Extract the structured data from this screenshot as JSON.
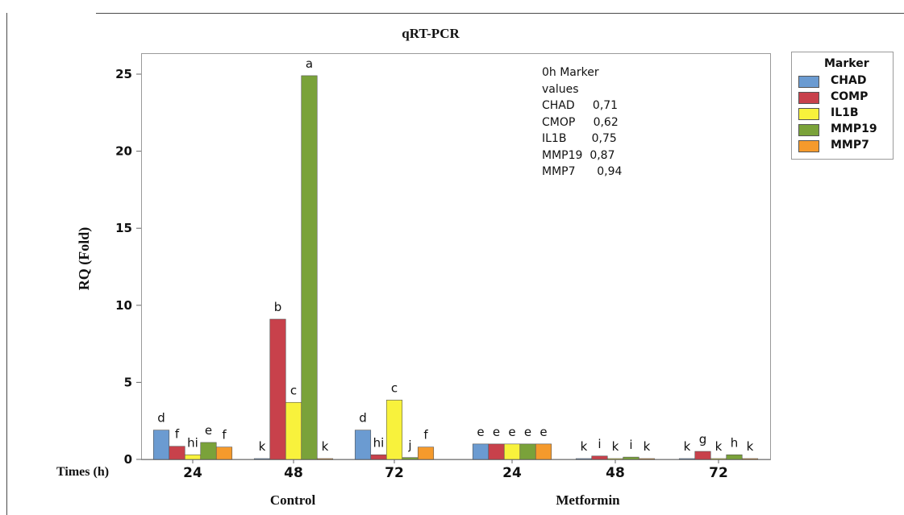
{
  "chart_data": {
    "type": "bar",
    "title": "qRT-PCR",
    "ylabel": "RQ (Fold)",
    "xlabel": "Times (h)",
    "ylim": [
      0,
      26
    ],
    "yticks": [
      0,
      5,
      10,
      15,
      20,
      25
    ],
    "grid": false,
    "legend_position": "right",
    "legend_title": "Marker",
    "groups": [
      "Control",
      "Metformin"
    ],
    "categories": [
      "24",
      "48",
      "72",
      "24",
      "48",
      "72"
    ],
    "colors": [
      "#6b9bd1",
      "#c8414b",
      "#f8f23c",
      "#7aa23a",
      "#f59a2c"
    ],
    "series": [
      {
        "name": "CHAD",
        "values": [
          1.9,
          0.04,
          1.9,
          1.0,
          0.04,
          0.04
        ],
        "letters": [
          "d",
          "k",
          "d",
          "e",
          "k",
          "k"
        ]
      },
      {
        "name": "COMP",
        "values": [
          0.85,
          9.1,
          0.3,
          1.0,
          0.22,
          0.52
        ],
        "letters": [
          "f",
          "b",
          "hi",
          "e",
          "i",
          "g"
        ]
      },
      {
        "name": "IL1B",
        "values": [
          0.3,
          3.7,
          3.85,
          1.0,
          0.04,
          0.04
        ],
        "letters": [
          "hi",
          "c",
          "c",
          "e",
          "k",
          "k"
        ]
      },
      {
        "name": "MMP19",
        "values": [
          1.1,
          24.9,
          0.12,
          1.0,
          0.15,
          0.3
        ],
        "letters": [
          "e",
          "a",
          "j",
          "e",
          "i",
          "h"
        ]
      },
      {
        "name": "MMP7",
        "values": [
          0.8,
          0.04,
          0.8,
          1.0,
          0.04,
          0.04
        ],
        "letters": [
          "f",
          "k",
          "f",
          "e",
          "k",
          "k"
        ]
      }
    ],
    "annotation": {
      "title_line1": "0h Marker",
      "title_line2": "values",
      "rows": [
        "CHAD     0,71",
        "CMOP     0,62",
        "IL1B       0,75",
        "MMP19  0,87",
        "MMP7      0,94"
      ]
    }
  }
}
